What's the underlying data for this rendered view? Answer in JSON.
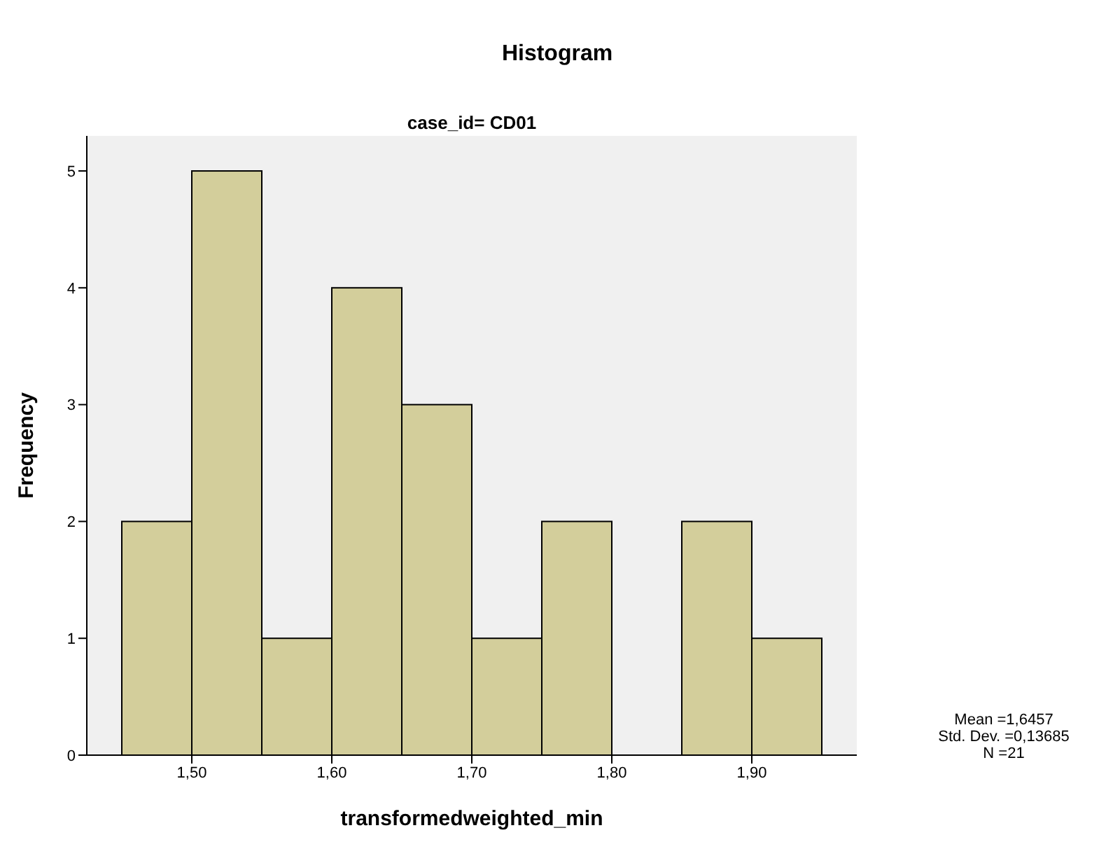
{
  "chart_data": {
    "type": "histogram",
    "title": "Histogram",
    "subtitle": "case_id= CD01",
    "xlabel": "transformedweighted_min",
    "ylabel": "Frequency",
    "bins": [
      1.45,
      1.5,
      1.55,
      1.6,
      1.65,
      1.7,
      1.75,
      1.8,
      1.85,
      1.9,
      1.95
    ],
    "values": [
      2,
      5,
      1,
      4,
      3,
      1,
      2,
      0,
      2,
      1
    ],
    "color": "#d3ce9b",
    "xlim": [
      1.425,
      1.975
    ],
    "xticks": [
      {
        "value": 1.5,
        "label": "1,50"
      },
      {
        "value": 1.6,
        "label": "1,60"
      },
      {
        "value": 1.7,
        "label": "1,70"
      },
      {
        "value": 1.8,
        "label": "1,80"
      },
      {
        "value": 1.9,
        "label": "1,90"
      }
    ],
    "ylim": [
      0,
      5.3
    ],
    "yticks": [
      0,
      1,
      2,
      3,
      4,
      5
    ],
    "grid": false,
    "annotations": [
      "Mean =1,6457",
      "Std. Dev. =0,13685",
      "N =21"
    ]
  }
}
